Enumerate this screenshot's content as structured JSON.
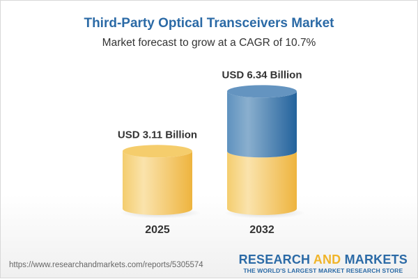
{
  "title": "Third-Party Optical Transceivers Market",
  "subtitle": "Market forecast to grow at a CAGR of 10.7%",
  "chart_data": {
    "type": "bar",
    "style": "3d-cylinder",
    "categories": [
      "2025",
      "2032"
    ],
    "values": [
      3.11,
      6.34
    ],
    "data_labels": [
      "USD 3.11 Billion",
      "USD 6.34 Billion"
    ],
    "unit": "USD Billion",
    "colors": {
      "base": "#f3c152",
      "growth": "#3a78b0"
    }
  },
  "footer": {
    "url": "https://www.researchandmarkets.com/reports/5305574",
    "logo_part1": "RESEARCH ",
    "logo_part2": "AND",
    "logo_part3": " MARKETS",
    "tagline": "THE WORLD'S LARGEST MARKET RESEARCH STORE"
  }
}
